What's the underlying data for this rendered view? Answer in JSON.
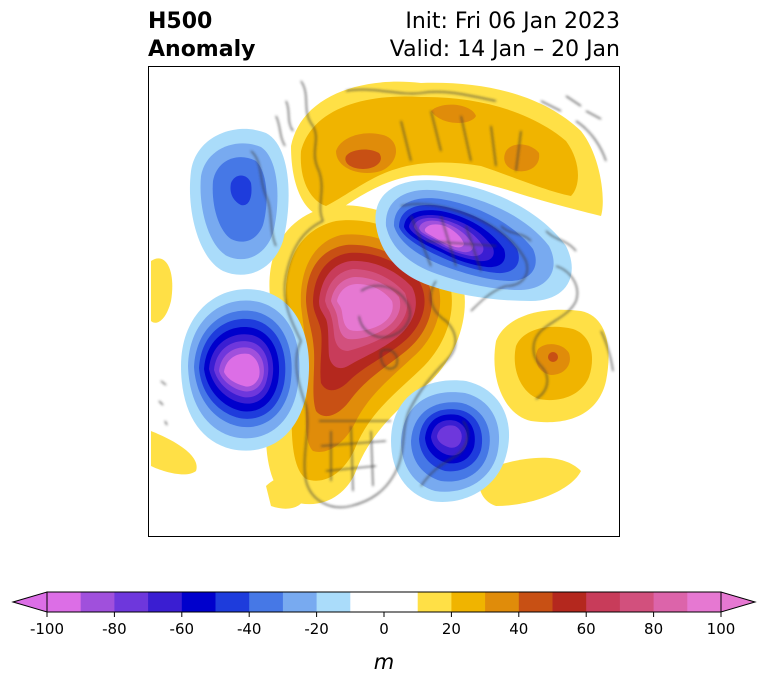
{
  "title": {
    "left_line1": "H500",
    "left_line2": "Anomaly",
    "right_line1": "Init: Fri 06 Jan 2023",
    "right_line2": "Valid: 14 Jan – 20 Jan"
  },
  "colorbar": {
    "units": "m",
    "ticks": [
      "-100",
      "-80",
      "-60",
      "-40",
      "-20",
      "0",
      "20",
      "40",
      "60",
      "80",
      "100"
    ],
    "colors": [
      "#dc6ee6",
      "#a050dc",
      "#6e37dc",
      "#3a1ed2",
      "#0000cc",
      "#1e3cdc",
      "#4678e6",
      "#78aaf0",
      "#aadcfa",
      "#ffffff",
      "#ffffff",
      "#ffe046",
      "#f0b400",
      "#e08c0a",
      "#c85014",
      "#b4281e",
      "#c83c5a",
      "#d2507d",
      "#dc64aa",
      "#e678d2"
    ],
    "extend_low_color": "#dc6ee6",
    "extend_high_color": "#e678d2"
  }
}
